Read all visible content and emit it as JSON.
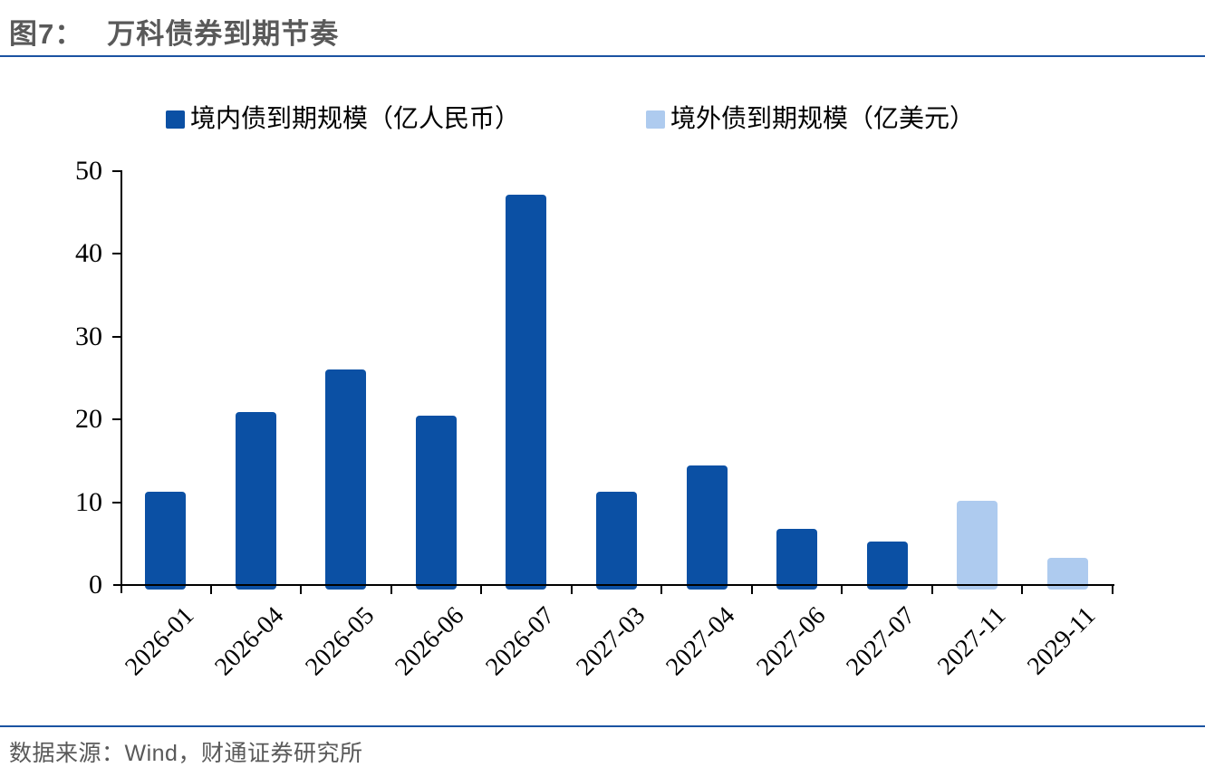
{
  "header": {
    "figure_label": "图7：",
    "title": "万科债券到期节奏"
  },
  "footer": {
    "source": "数据来源：Wind，财通证券研究所"
  },
  "colors": {
    "title_gray": "#595959",
    "rule_blue": "#1B53A2",
    "axis_black": "#000000",
    "domestic_blue": "#0B50A4",
    "overseas_blue": "#AECBEF"
  },
  "chart_data": {
    "type": "bar",
    "title": "万科债券到期节奏",
    "categories": [
      "2026-01",
      "2026-04",
      "2026-05",
      "2026-06",
      "2026-07",
      "2027-03",
      "2027-04",
      "2027-06",
      "2027-07",
      "2027-11",
      "2029-11"
    ],
    "series": [
      {
        "name": "境内债到期规模（亿人民币）",
        "color": "#0B50A4",
        "values": [
          11.2,
          20.8,
          25.9,
          20.3,
          47,
          11.2,
          14.3,
          6.7,
          5.1,
          null,
          null
        ]
      },
      {
        "name": "境外债到期规模（亿美元）",
        "color": "#AECBEF",
        "values": [
          null,
          null,
          null,
          null,
          null,
          null,
          null,
          null,
          null,
          10.1,
          3.2
        ]
      }
    ],
    "xlabel": "",
    "ylabel": "",
    "ylim": [
      0,
      50
    ],
    "ytick_interval": 10,
    "yticks": [
      0,
      10,
      20,
      30,
      40,
      50
    ],
    "grid": false,
    "legend_position": "top",
    "x_label_rotation_deg": -45
  }
}
